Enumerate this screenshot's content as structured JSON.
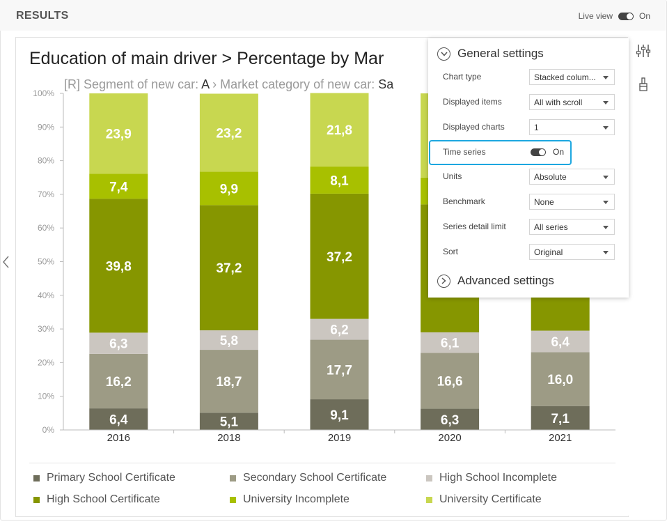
{
  "header": {
    "title": "RESULTS",
    "live_view_label": "Live view",
    "live_view_state": "On"
  },
  "chart": {
    "title": "Education of main driver > Percentage by Mar",
    "subtitle_prefix": "[R] Segment of new car: ",
    "subtitle_value1": "A",
    "subtitle_mid": " › Market category of new car: ",
    "subtitle_value2": "Sa"
  },
  "chart_data": {
    "type": "bar",
    "stacked": true,
    "categories": [
      "2016",
      "2018",
      "2019",
      "2020",
      "2021"
    ],
    "y_ticks": [
      "0%",
      "10%",
      "20%",
      "30%",
      "40%",
      "50%",
      "60%",
      "70%",
      "80%",
      "90%",
      "100%"
    ],
    "ylim": [
      0,
      100
    ],
    "series": [
      {
        "name": "Primary School Certificate",
        "color": "#6e6d5a",
        "values": [
          6.4,
          5.1,
          9.1,
          6.3,
          7.1
        ],
        "labels": [
          "6,4",
          "5,1",
          "9,1",
          "6,3",
          "7,1"
        ]
      },
      {
        "name": "Secondary School Certificate",
        "color": "#9d9b85",
        "values": [
          16.2,
          18.7,
          17.7,
          16.6,
          16.0
        ],
        "labels": [
          "16,2",
          "18,7",
          "17,7",
          "16,6",
          "16,0"
        ]
      },
      {
        "name": "High School Incomplete",
        "color": "#cbc6c0",
        "values": [
          6.3,
          5.8,
          6.2,
          6.1,
          6.4
        ],
        "labels": [
          "6,3",
          "5,8",
          "6,2",
          "6,1",
          "6,4"
        ]
      },
      {
        "name": "High School Certificate",
        "color": "#869600",
        "values": [
          39.8,
          37.2,
          37.2,
          38.0,
          38.0
        ],
        "labels": [
          "39,8",
          "37,2",
          "37,2",
          "",
          ""
        ]
      },
      {
        "name": "University Incomplete",
        "color": "#a8c000",
        "values": [
          7.4,
          9.9,
          8.1,
          8.0,
          8.0
        ],
        "labels": [
          "7,4",
          "9,9",
          "8,1",
          "",
          ""
        ]
      },
      {
        "name": "University Certificate",
        "color": "#c8d750",
        "values": [
          23.9,
          23.2,
          21.8,
          25.0,
          24.5
        ],
        "labels": [
          "23,9",
          "23,2",
          "21,8",
          "",
          ""
        ]
      }
    ]
  },
  "legend": [
    {
      "label": "Primary School Certificate",
      "color": "#6e6d5a"
    },
    {
      "label": "Secondary School Certificate",
      "color": "#9d9b85"
    },
    {
      "label": "High School Incomplete",
      "color": "#cbc6c0"
    },
    {
      "label": "High School Certificate",
      "color": "#869600"
    },
    {
      "label": "University Incomplete",
      "color": "#a8c000"
    },
    {
      "label": "University Certificate",
      "color": "#c8d750"
    }
  ],
  "panel": {
    "general_title": "General settings",
    "advanced_title": "Advanced settings",
    "settings": [
      {
        "label": "Chart type",
        "value": "Stacked colum..."
      },
      {
        "label": "Displayed items",
        "value": "All with scroll"
      },
      {
        "label": "Displayed charts",
        "value": "1"
      },
      {
        "label": "Time series",
        "value": "On"
      },
      {
        "label": "Units",
        "value": "Absolute"
      },
      {
        "label": "Benchmark",
        "value": "None"
      },
      {
        "label": "Series detail limit",
        "value": "All series"
      },
      {
        "label": "Sort",
        "value": "Original"
      }
    ]
  },
  "colors": {
    "highlight": "#1da7e0",
    "text_dark": "#222222",
    "text_muted": "#999999"
  },
  "icons": {
    "settings": "sliders-icon",
    "style": "paintbrush-icon",
    "nav_left": "chevron-left-icon"
  }
}
